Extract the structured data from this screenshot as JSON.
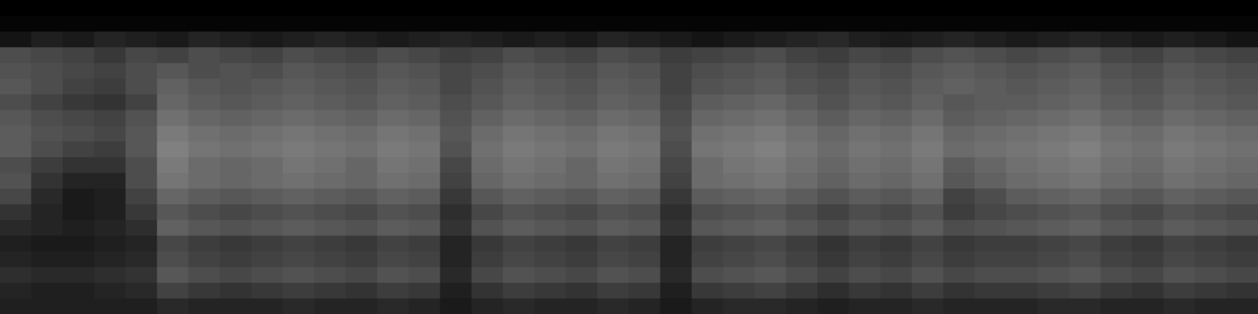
{
  "chart_data": {
    "type": "heatmap",
    "tick_labels": false,
    "grid": false,
    "zlim": [
      0,
      100
    ],
    "cells": [
      [
        0,
        0,
        0,
        0,
        0,
        0,
        0,
        0,
        0,
        0,
        0,
        0,
        0,
        0,
        0,
        0,
        0,
        0,
        0,
        0,
        0,
        0,
        0,
        0,
        0,
        0,
        0,
        0,
        0,
        0,
        0,
        0,
        0,
        0,
        0,
        0,
        0,
        0,
        0,
        0
      ],
      [
        2,
        2,
        2,
        2,
        2,
        2,
        2,
        2,
        2,
        2,
        2,
        2,
        2,
        2,
        2,
        2,
        2,
        2,
        2,
        2,
        2,
        2,
        2,
        2,
        2,
        2,
        2,
        2,
        2,
        2,
        2,
        2,
        2,
        2,
        2,
        2,
        2,
        2,
        2,
        2
      ],
      [
        8,
        12,
        10,
        14,
        12,
        10,
        14,
        12,
        10,
        12,
        14,
        12,
        10,
        12,
        14,
        12,
        10,
        12,
        10,
        14,
        12,
        10,
        8,
        10,
        12,
        14,
        16,
        12,
        10,
        12,
        14,
        12,
        10,
        12,
        14,
        12,
        10,
        12,
        10,
        8
      ],
      [
        30,
        28,
        26,
        22,
        28,
        26,
        30,
        28,
        26,
        30,
        28,
        26,
        30,
        28,
        24,
        26,
        30,
        28,
        26,
        30,
        28,
        24,
        26,
        28,
        30,
        26,
        24,
        28,
        26,
        30,
        32,
        30,
        28,
        30,
        32,
        28,
        26,
        30,
        28,
        26
      ],
      [
        32,
        30,
        28,
        26,
        30,
        34,
        30,
        32,
        30,
        34,
        32,
        30,
        34,
        32,
        28,
        30,
        34,
        32,
        30,
        34,
        32,
        26,
        30,
        32,
        34,
        30,
        28,
        32,
        30,
        34,
        36,
        34,
        32,
        34,
        36,
        32,
        30,
        34,
        32,
        30
      ],
      [
        34,
        30,
        26,
        24,
        30,
        38,
        34,
        32,
        34,
        36,
        34,
        32,
        36,
        34,
        28,
        32,
        36,
        34,
        32,
        36,
        34,
        26,
        32,
        34,
        36,
        32,
        30,
        34,
        32,
        36,
        38,
        36,
        34,
        36,
        38,
        34,
        32,
        36,
        34,
        32
      ],
      [
        30,
        26,
        22,
        20,
        26,
        40,
        36,
        34,
        36,
        38,
        36,
        34,
        38,
        36,
        30,
        34,
        38,
        36,
        34,
        38,
        36,
        28,
        36,
        38,
        40,
        36,
        32,
        36,
        34,
        38,
        34,
        36,
        36,
        38,
        40,
        36,
        34,
        38,
        36,
        34
      ],
      [
        34,
        30,
        28,
        26,
        32,
        44,
        40,
        38,
        40,
        42,
        40,
        38,
        42,
        40,
        32,
        38,
        42,
        40,
        38,
        42,
        40,
        30,
        40,
        42,
        44,
        40,
        36,
        40,
        38,
        42,
        36,
        38,
        40,
        42,
        44,
        40,
        38,
        42,
        40,
        38
      ],
      [
        36,
        32,
        30,
        28,
        34,
        48,
        44,
        42,
        44,
        46,
        44,
        42,
        46,
        44,
        34,
        42,
        46,
        44,
        42,
        46,
        44,
        32,
        44,
        46,
        48,
        44,
        40,
        44,
        42,
        46,
        40,
        42,
        44,
        46,
        48,
        44,
        42,
        46,
        44,
        42
      ],
      [
        36,
        30,
        26,
        24,
        34,
        50,
        46,
        44,
        46,
        48,
        46,
        44,
        48,
        46,
        32,
        44,
        48,
        46,
        44,
        48,
        46,
        30,
        46,
        48,
        50,
        46,
        42,
        46,
        44,
        48,
        42,
        44,
        46,
        48,
        50,
        46,
        44,
        48,
        46,
        44
      ],
      [
        30,
        24,
        20,
        20,
        30,
        48,
        42,
        40,
        42,
        46,
        44,
        40,
        46,
        44,
        28,
        42,
        46,
        44,
        40,
        46,
        44,
        28,
        42,
        46,
        48,
        44,
        40,
        44,
        42,
        46,
        36,
        40,
        44,
        46,
        48,
        44,
        42,
        46,
        44,
        42
      ],
      [
        32,
        20,
        14,
        14,
        30,
        46,
        42,
        40,
        42,
        44,
        42,
        40,
        44,
        42,
        26,
        40,
        44,
        42,
        40,
        44,
        42,
        26,
        42,
        44,
        46,
        42,
        38,
        42,
        40,
        44,
        34,
        38,
        42,
        44,
        46,
        42,
        40,
        44,
        42,
        40
      ],
      [
        28,
        16,
        10,
        12,
        26,
        40,
        36,
        34,
        36,
        38,
        36,
        34,
        38,
        36,
        22,
        34,
        38,
        36,
        34,
        38,
        36,
        22,
        36,
        38,
        40,
        36,
        32,
        36,
        34,
        38,
        26,
        30,
        36,
        38,
        40,
        36,
        34,
        38,
        36,
        34
      ],
      [
        20,
        14,
        10,
        12,
        22,
        34,
        30,
        28,
        30,
        32,
        30,
        28,
        32,
        30,
        18,
        28,
        32,
        30,
        28,
        32,
        30,
        18,
        30,
        32,
        34,
        30,
        26,
        30,
        28,
        32,
        24,
        28,
        30,
        32,
        34,
        30,
        28,
        32,
        30,
        28
      ],
      [
        16,
        14,
        12,
        14,
        18,
        38,
        34,
        32,
        34,
        36,
        34,
        32,
        36,
        34,
        20,
        32,
        36,
        34,
        32,
        36,
        34,
        20,
        34,
        36,
        38,
        34,
        30,
        34,
        32,
        36,
        30,
        32,
        34,
        36,
        38,
        34,
        32,
        36,
        34,
        32
      ],
      [
        12,
        10,
        10,
        12,
        14,
        28,
        24,
        22,
        24,
        26,
        24,
        22,
        26,
        24,
        14,
        22,
        26,
        24,
        22,
        26,
        24,
        14,
        24,
        26,
        28,
        24,
        20,
        24,
        22,
        26,
        22,
        24,
        24,
        26,
        28,
        24,
        22,
        26,
        24,
        22
      ],
      [
        14,
        12,
        12,
        14,
        16,
        30,
        26,
        24,
        26,
        28,
        26,
        24,
        28,
        26,
        14,
        24,
        28,
        26,
        24,
        28,
        26,
        14,
        26,
        28,
        30,
        26,
        22,
        26,
        24,
        28,
        24,
        26,
        26,
        28,
        30,
        26,
        24,
        28,
        26,
        24
      ],
      [
        18,
        16,
        16,
        18,
        20,
        34,
        30,
        28,
        30,
        32,
        30,
        28,
        32,
        30,
        16,
        28,
        32,
        30,
        28,
        32,
        30,
        16,
        30,
        32,
        34,
        30,
        26,
        30,
        28,
        32,
        28,
        30,
        30,
        32,
        34,
        30,
        28,
        32,
        30,
        28
      ],
      [
        14,
        12,
        12,
        14,
        16,
        26,
        22,
        20,
        22,
        24,
        22,
        20,
        24,
        22,
        12,
        20,
        24,
        22,
        20,
        24,
        22,
        12,
        22,
        24,
        26,
        22,
        18,
        22,
        20,
        24,
        20,
        22,
        22,
        24,
        26,
        22,
        20,
        24,
        22,
        20
      ],
      [
        12,
        12,
        12,
        12,
        12,
        16,
        14,
        14,
        14,
        16,
        14,
        14,
        16,
        14,
        10,
        14,
        16,
        14,
        14,
        16,
        14,
        10,
        14,
        16,
        16,
        14,
        12,
        14,
        14,
        16,
        14,
        14,
        14,
        16,
        16,
        14,
        14,
        16,
        14,
        14
      ]
    ]
  }
}
